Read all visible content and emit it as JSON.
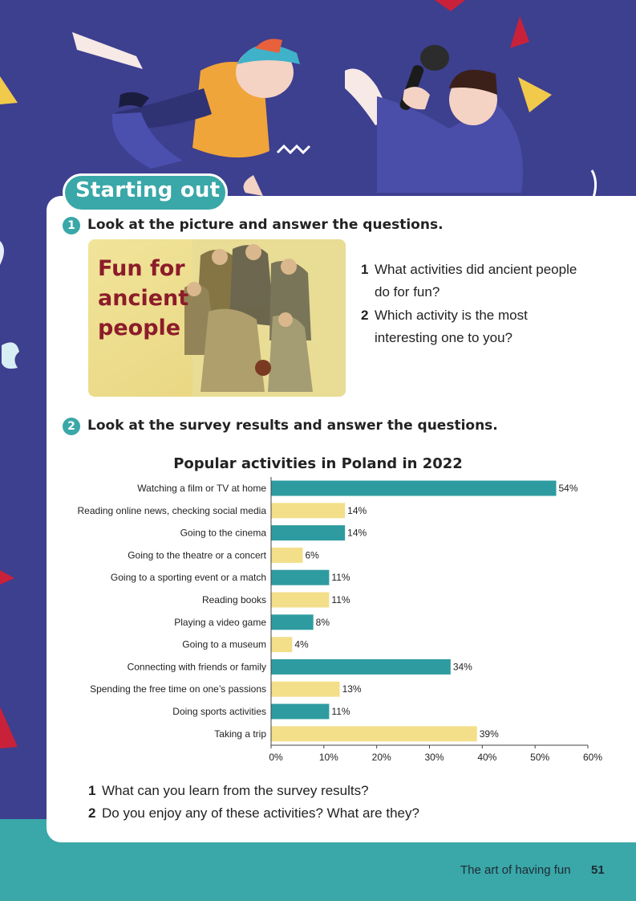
{
  "section_heading": "Starting out",
  "exercise1": {
    "number": "1",
    "instruction": "Look at the picture and answer the questions.",
    "picture_title_lines": [
      "Fun for",
      "ancient",
      "people"
    ],
    "questions": [
      {
        "num": "1",
        "lines": [
          "What activities did ancient people",
          "do for fun?"
        ]
      },
      {
        "num": "2",
        "lines": [
          "Which activity is the most",
          "interesting one to you?"
        ]
      }
    ]
  },
  "exercise2": {
    "number": "2",
    "instruction": "Look at the survey results and answer the questions.",
    "questions": [
      {
        "num": "1",
        "text": "What can you learn from the survey results?"
      },
      {
        "num": "2",
        "text": "Do you enjoy any of these activities? What are they?"
      }
    ]
  },
  "chart_data": {
    "type": "bar",
    "orientation": "horizontal",
    "title": "Popular activities in Poland in 2022",
    "categories": [
      "Watching a film or TV at home",
      "Reading online news, checking social media",
      "Going to the cinema",
      "Going to the theatre or a concert",
      "Going to a sporting event or a match",
      "Reading books",
      "Playing a video game",
      "Going to a museum",
      "Connecting with friends or family",
      "Spending the free time on one’s passions",
      "Doing sports activities",
      "Taking a trip"
    ],
    "values": [
      54,
      14,
      14,
      6,
      11,
      11,
      8,
      4,
      34,
      13,
      11,
      39
    ],
    "value_labels": [
      "54%",
      "14%",
      "14%",
      "6%",
      "11%",
      "11%",
      "8%",
      "4%",
      "34%",
      "13%",
      "11%",
      "39%"
    ],
    "bar_colors": [
      "#2e9ba0",
      "#f3df8a",
      "#2e9ba0",
      "#f3df8a",
      "#2e9ba0",
      "#f3df8a",
      "#2e9ba0",
      "#f3df8a",
      "#2e9ba0",
      "#f3df8a",
      "#2e9ba0",
      "#f3df8a"
    ],
    "xlim": [
      0,
      60
    ],
    "xticks": [
      "0%",
      "10%",
      "20%",
      "30%",
      "40%",
      "50%",
      "60%"
    ],
    "grid": false
  },
  "footer": {
    "chapter": "The art of having fun",
    "page_number": "51"
  },
  "colors": {
    "background": "#3d3f8f",
    "accent": "#3aa7a8",
    "title_red": "#8c1c2a",
    "footer_band": "#3aa7a8"
  }
}
